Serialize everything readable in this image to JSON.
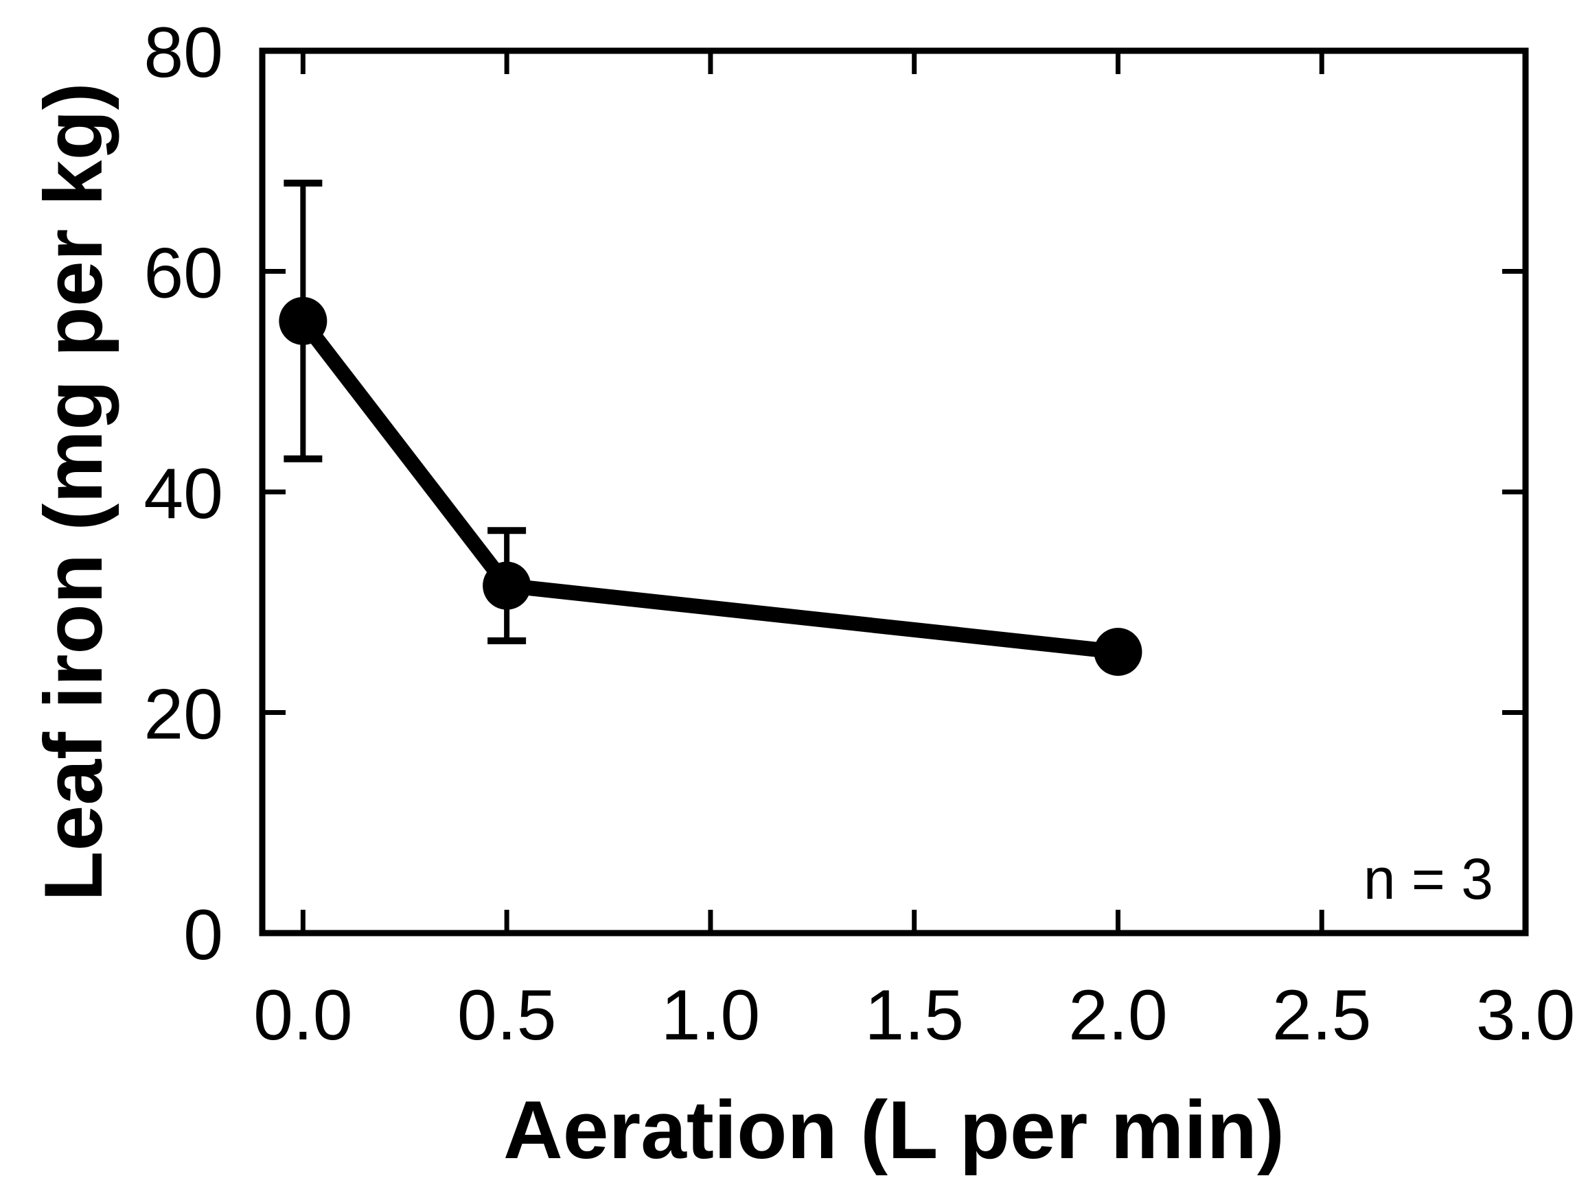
{
  "chart_data": {
    "type": "line",
    "title": "",
    "xlabel": "Aeration (L per min)",
    "ylabel": "Leaf iron (mg per kg)",
    "xlim": [
      -0.1,
      3.0
    ],
    "ylim": [
      0,
      80
    ],
    "x_ticks": [
      0.0,
      0.5,
      1.0,
      1.5,
      2.0,
      2.5,
      3.0
    ],
    "x_tick_labels": [
      "0.0",
      "0.5",
      "1.0",
      "1.5",
      "2.0",
      "2.5",
      "3.0"
    ],
    "y_ticks": [
      0,
      20,
      40,
      60,
      80
    ],
    "y_tick_labels": [
      "0",
      "20",
      "40",
      "60",
      "80"
    ],
    "grid": false,
    "series": [
      {
        "x": [
          0.0,
          0.5,
          2.0
        ],
        "y": [
          55.5,
          31.5,
          25.5
        ],
        "error": [
          12.5,
          5.0,
          1.0
        ],
        "color": "#000000"
      }
    ],
    "annotations": [
      {
        "text": "n = 3",
        "position": "bottom-right"
      }
    ]
  }
}
